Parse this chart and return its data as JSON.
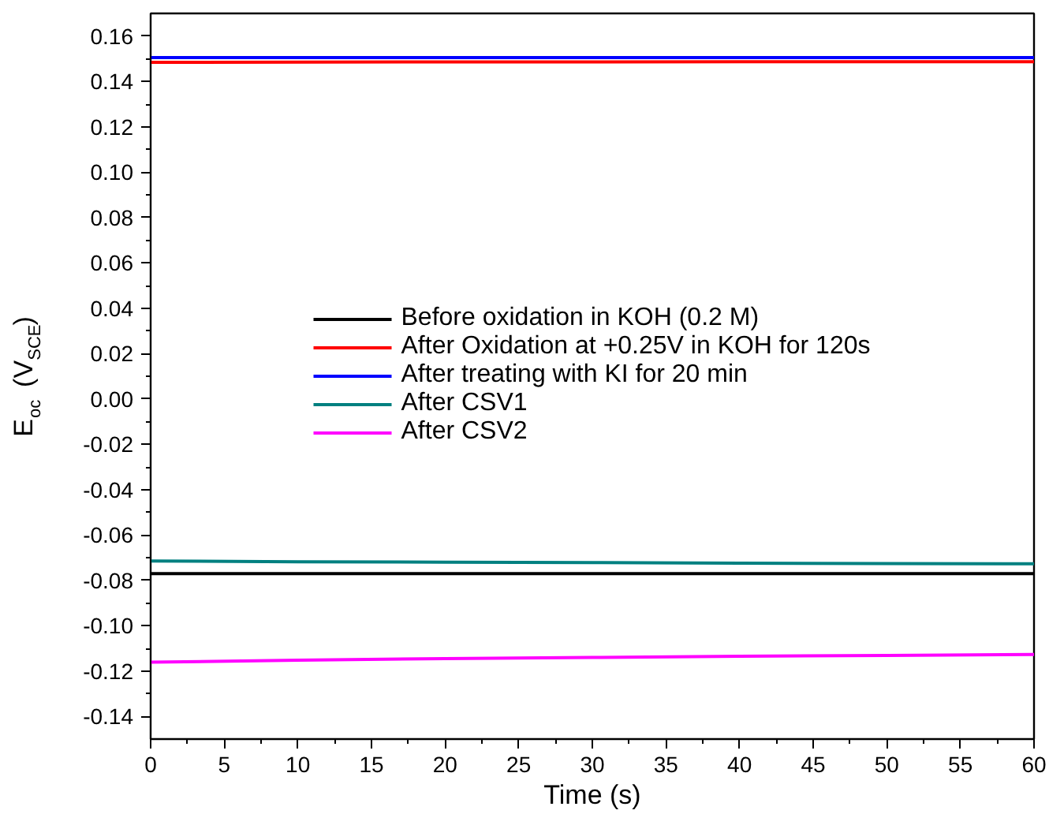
{
  "chart_data": {
    "type": "line",
    "xlabel": "Time (s)",
    "ylabel": "E$_{oc}$ (V$_{SCE}$)",
    "x": [
      0,
      10,
      20,
      30,
      40,
      50,
      60
    ],
    "series": [
      {
        "name": "Before oxidation in KOH (0.2 M)",
        "color": "#000000",
        "values": [
          -0.077,
          -0.077,
          -0.077,
          -0.077,
          -0.077,
          -0.077,
          -0.077
        ]
      },
      {
        "name": "After Oxidation at +0.25V in KOH for 120s",
        "color": "#ff0000",
        "values": [
          0.1484,
          0.1485,
          0.1486,
          0.1486,
          0.1487,
          0.1487,
          0.1487
        ]
      },
      {
        "name": "After treating with KI for 20 min",
        "color": "#0000ff",
        "values": [
          0.1505,
          0.1505,
          0.1505,
          0.1505,
          0.1505,
          0.1505,
          0.1505
        ]
      },
      {
        "name": "After CSV1",
        "color": "#008080",
        "values": [
          -0.0715,
          -0.0718,
          -0.072,
          -0.0722,
          -0.0724,
          -0.0726,
          -0.0727
        ]
      },
      {
        "name": "After CSV2",
        "color": "#ff00ff",
        "values": [
          -0.1161,
          -0.1152,
          -0.1145,
          -0.114,
          -0.1135,
          -0.1131,
          -0.1127
        ]
      }
    ],
    "xlim": [
      0,
      60
    ],
    "ylim": [
      -0.15,
      0.17
    ],
    "xticks": [
      0,
      5,
      10,
      15,
      20,
      25,
      30,
      35,
      40,
      45,
      50,
      55,
      60
    ],
    "yticks": [
      {
        "value": -0.14,
        "label": "-0.14"
      },
      {
        "value": -0.12,
        "label": "-0.12"
      },
      {
        "value": -0.1,
        "label": "-0.10"
      },
      {
        "value": -0.08,
        "label": "-0.08"
      },
      {
        "value": -0.06,
        "label": "-0.06"
      },
      {
        "value": -0.04,
        "label": "-0.04"
      },
      {
        "value": -0.02,
        "label": "-0.02"
      },
      {
        "value": 0,
        "label": "0.00"
      },
      {
        "value": 0.02,
        "label": "0.02"
      },
      {
        "value": 0.04,
        "label": "0.04"
      },
      {
        "value": 0.06,
        "label": "0.06"
      },
      {
        "value": 0.08,
        "label": "0.08"
      },
      {
        "value": 0.1,
        "label": "0.10"
      },
      {
        "value": 0.12,
        "label": "0.12"
      },
      {
        "value": 0.14,
        "label": "0.14"
      },
      {
        "value": 0.16,
        "label": "0.16"
      }
    ],
    "grid": false,
    "legend": "center",
    "marker": "none",
    "line_style": "solid"
  }
}
